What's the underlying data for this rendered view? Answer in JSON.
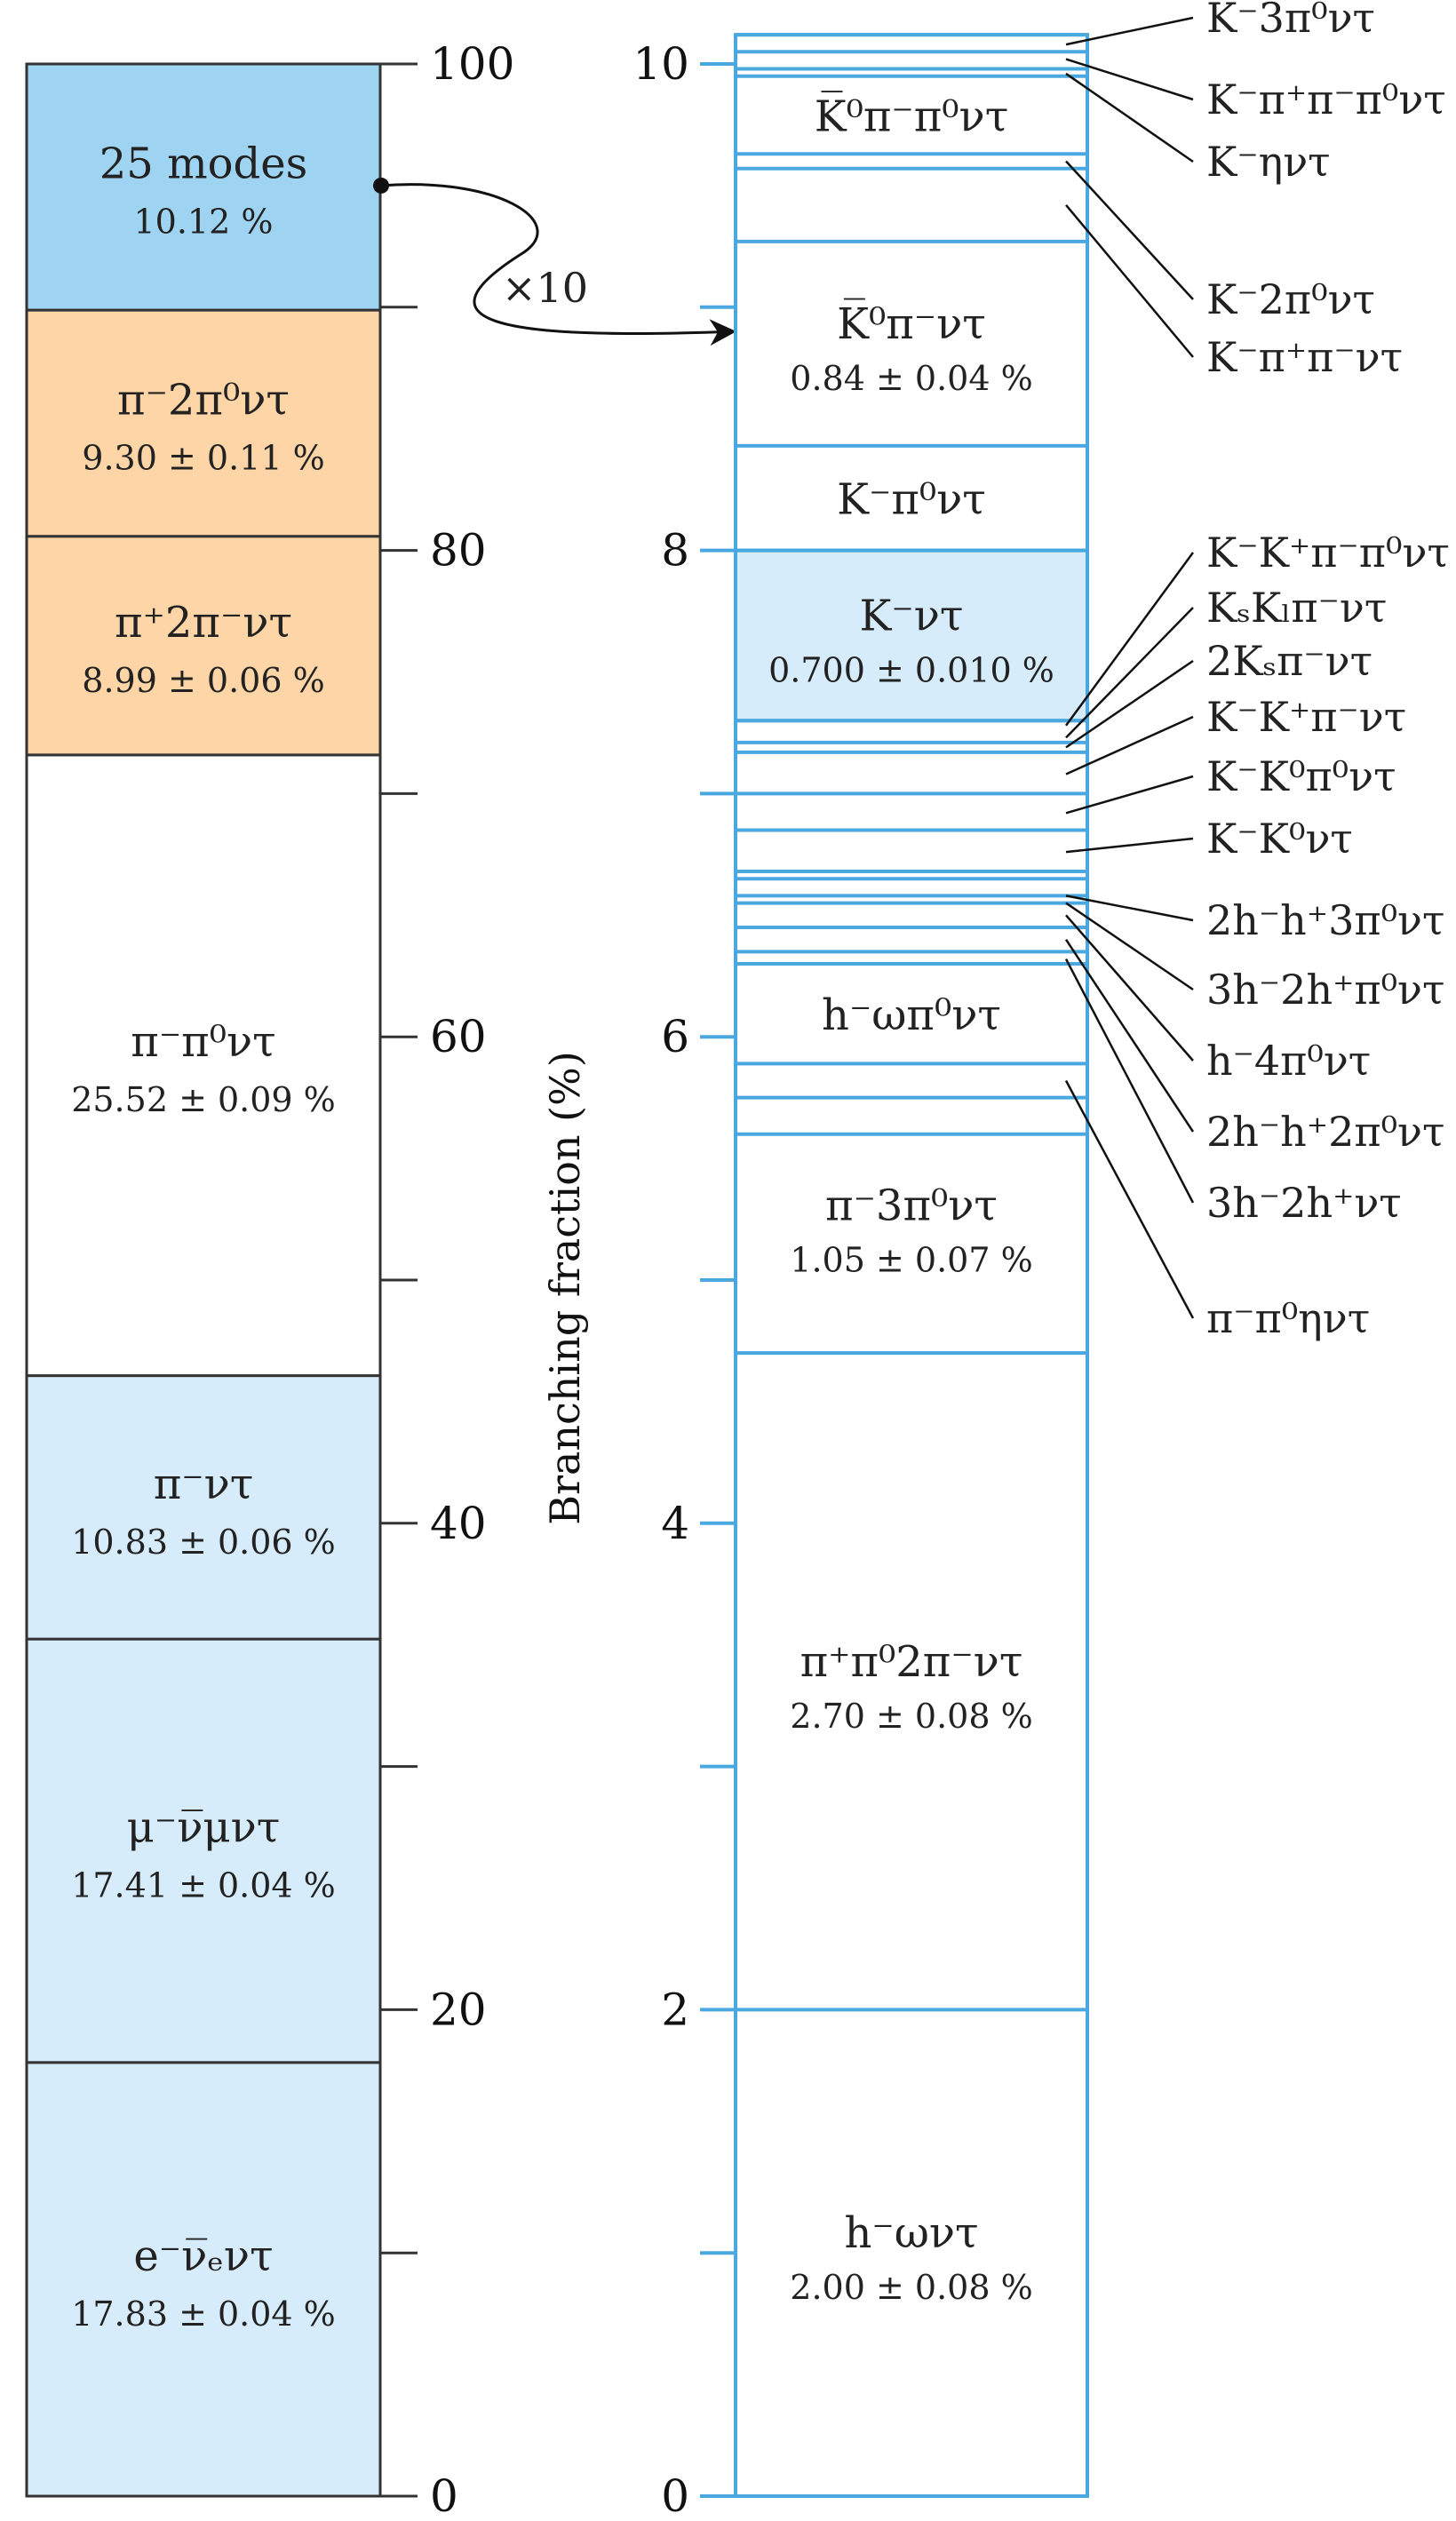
{
  "chart_data": [
    {
      "type": "bar",
      "ylim": [
        0,
        100
      ],
      "ticks_major": [
        0,
        20,
        40,
        60,
        80,
        100
      ],
      "ticks_minor": [
        10,
        30,
        50,
        70,
        90
      ],
      "segments": [
        {
          "name": "e⁻ν̅ₑντ",
          "value_label": "17.83 ± 0.04 %",
          "start": 0,
          "end": 17.83,
          "color": "#d6ecfa"
        },
        {
          "name": "μ⁻ν̅μντ",
          "value_label": "17.41 ± 0.04 %",
          "start": 17.83,
          "end": 35.24,
          "color": "#d6ecfa"
        },
        {
          "name": "π⁻ντ",
          "value_label": "10.83 ± 0.06 %",
          "start": 35.24,
          "end": 46.07,
          "color": "#d6ecfa"
        },
        {
          "name": "π⁻π⁰ντ",
          "value_label": "25.52 ± 0.09 %",
          "start": 46.07,
          "end": 71.59,
          "color": "#ffffff"
        },
        {
          "name": "π⁺2π⁻ντ",
          "value_label": "8.99 ± 0.06 %",
          "start": 71.59,
          "end": 80.58,
          "color": "#fdd5a6"
        },
        {
          "name": "π⁻2π⁰ντ",
          "value_label": "9.30 ± 0.11 %",
          "start": 80.58,
          "end": 89.88,
          "color": "#fdd5a6"
        },
        {
          "name": "25 modes",
          "value_label": "10.12 %",
          "start": 89.88,
          "end": 100,
          "color": "#9ed3f1"
        }
      ]
    },
    {
      "type": "bar",
      "ylabel": "Branching fraction  (%)",
      "ylim": [
        0,
        10
      ],
      "ticks_major": [
        0,
        2,
        4,
        6,
        8,
        10
      ],
      "ticks_minor": [
        1,
        3,
        5,
        7,
        9
      ],
      "magnify_label": "×10",
      "segments": [
        {
          "name": "h⁻ωντ",
          "value_label": "2.00 ± 0.08 %",
          "start": 0,
          "end": 2.0
        },
        {
          "name": "π⁺π⁰2π⁻ντ",
          "value_label": "2.70 ± 0.08 %",
          "start": 2.0,
          "end": 4.7
        },
        {
          "name": "π⁻3π⁰ντ",
          "value_label": "1.05 ± 0.07 %",
          "start": 4.7,
          "end": 5.75
        },
        {
          "name": "h⁻ωπ⁰ντ",
          "value_label": "",
          "start": 5.89,
          "end": 6.3
        },
        {
          "name": "K⁻ντ",
          "value_label": "0.700 ± 0.010 %",
          "start": 7.3,
          "end": 8.0,
          "highlight": true
        },
        {
          "name": "K⁻π⁰ντ",
          "value_label": "",
          "start": 8.0,
          "end": 8.43
        },
        {
          "name": "K̅⁰π⁻ντ",
          "value_label": "0.84 ± 0.04 %",
          "start": 8.43,
          "end": 9.27
        },
        {
          "name": "K̅⁰π⁻π⁰ντ",
          "value_label": "",
          "start": 9.63,
          "end": 9.95
        }
      ],
      "boundaries": [
        5.6,
        5.75,
        5.89,
        6.3,
        6.35,
        6.45,
        6.55,
        6.58,
        6.65,
        6.68,
        6.85,
        7.0,
        7.17,
        7.21,
        7.3,
        9.27,
        9.57,
        9.63,
        9.95,
        9.98,
        10.05,
        10.12
      ],
      "callouts": [
        {
          "label": "K⁻3π⁰ντ",
          "at": 10.08
        },
        {
          "label": "K⁻π⁺π⁻π⁰ντ",
          "at": 10.02
        },
        {
          "label": "K⁻ηντ",
          "at": 9.96
        },
        {
          "label": "K⁻2π⁰ντ",
          "at": 9.6
        },
        {
          "label": "K⁻π⁺π⁻ντ",
          "at": 9.42
        },
        {
          "label": "K⁻K⁺π⁻π⁰ντ",
          "at": 7.28
        },
        {
          "label": "KₛKₗπ⁻ντ",
          "at": 7.23
        },
        {
          "label": "2Kₛπ⁻ντ",
          "at": 7.19
        },
        {
          "label": "K⁻K⁺π⁻ντ",
          "at": 7.08
        },
        {
          "label": "K⁻K⁰π⁰ντ",
          "at": 6.92
        },
        {
          "label": "K⁻K⁰ντ",
          "at": 6.76
        },
        {
          "label": "2h⁻h⁺3π⁰ντ",
          "at": 6.58
        },
        {
          "label": "3h⁻2h⁺π⁰ντ",
          "at": 6.55
        },
        {
          "label": "h⁻4π⁰ντ",
          "at": 6.5
        },
        {
          "label": "2h⁻h⁺2π⁰ντ",
          "at": 6.4
        },
        {
          "label": "3h⁻2h⁺ντ",
          "at": 6.32
        },
        {
          "label": "π⁻π⁰ηντ",
          "at": 5.82
        }
      ]
    }
  ]
}
